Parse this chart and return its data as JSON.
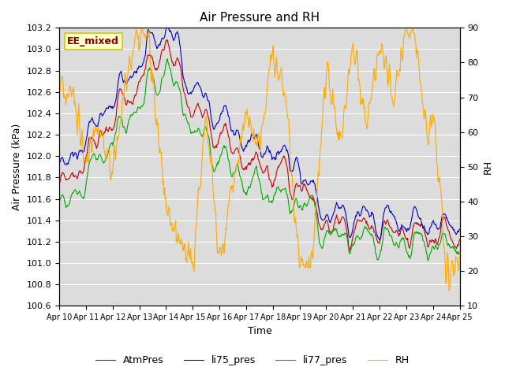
{
  "title": "Air Pressure and RH",
  "xlabel": "Time",
  "ylabel_left": "Air Pressure (kPa)",
  "ylabel_right": "RH",
  "annotation": "EE_mixed",
  "ylim_left": [
    100.6,
    103.2
  ],
  "ylim_right": [
    10,
    90
  ],
  "yticks_left": [
    100.6,
    100.8,
    101.0,
    101.2,
    101.4,
    101.6,
    101.8,
    102.0,
    102.2,
    102.4,
    102.6,
    102.8,
    103.0,
    103.2
  ],
  "yticks_right": [
    10,
    20,
    30,
    40,
    50,
    60,
    70,
    80,
    90
  ],
  "xtick_labels": [
    "Apr 10",
    "Apr 11",
    "Apr 12",
    "Apr 13",
    "Apr 14",
    "Apr 15",
    "Apr 16",
    "Apr 17",
    "Apr 18",
    "Apr 19",
    "Apr 20",
    "Apr 21",
    "Apr 22",
    "Apr 23",
    "Apr 24",
    "Apr 25"
  ],
  "n_days": 15,
  "colors": {
    "AtmPres": "#cc0000",
    "li75_pres": "#0000cc",
    "li77_pres": "#00aa00",
    "RH": "#ffaa00",
    "background": "#dcdcdc",
    "annotation_bg": "#ffffcc",
    "annotation_border": "#cccc00",
    "annotation_text": "#880000"
  },
  "legend_labels": [
    "AtmPres",
    "li75_pres",
    "li77_pres",
    "RH"
  ]
}
